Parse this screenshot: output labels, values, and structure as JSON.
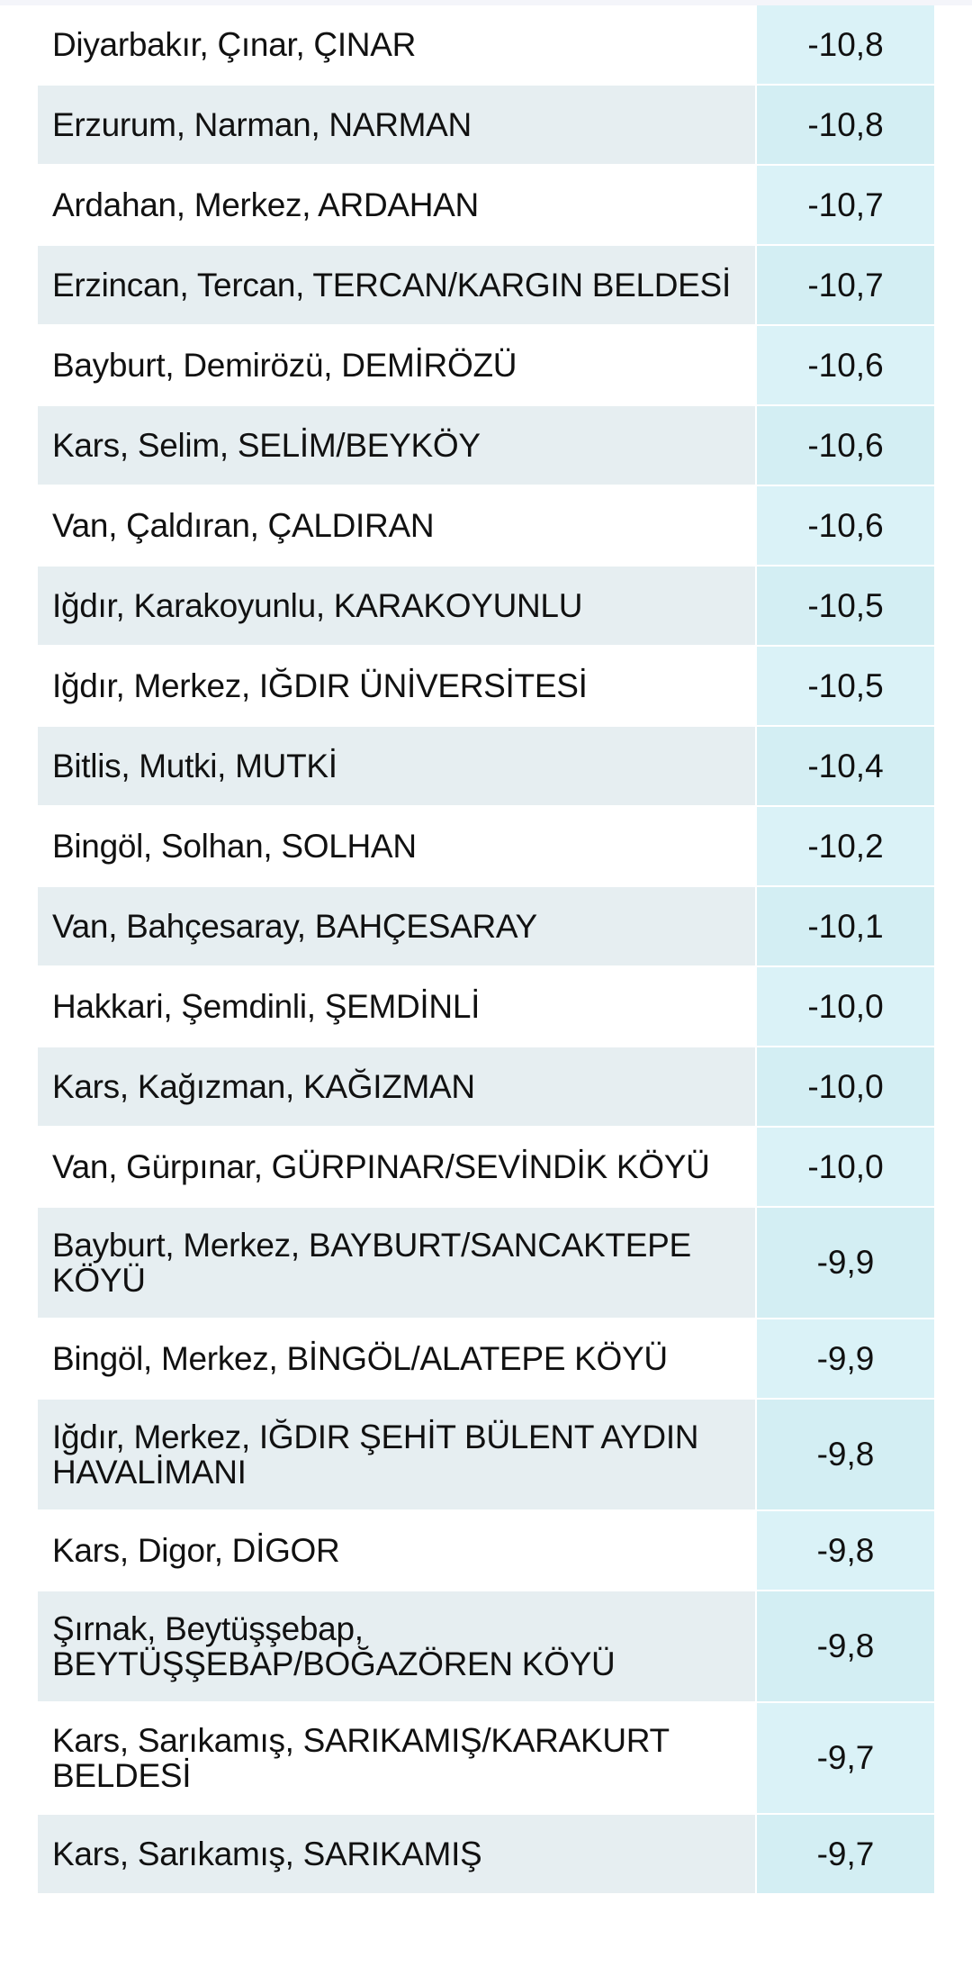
{
  "table": {
    "colors": {
      "row_alt": "#e6eef1",
      "value_cell": "#d5f0f5"
    },
    "rows": [
      {
        "location": "Diyarbakır, Çınar, ÇINAR",
        "value": "-10,8"
      },
      {
        "location": "Erzurum, Narman, NARMAN",
        "value": "-10,8"
      },
      {
        "location": "Ardahan, Merkez, ARDAHAN",
        "value": "-10,7"
      },
      {
        "location": "Erzincan, Tercan, TERCAN/KARGIN BELDESİ",
        "value": "-10,7"
      },
      {
        "location": "Bayburt, Demirözü, DEMİRÖZÜ",
        "value": "-10,6"
      },
      {
        "location": "Kars, Selim, SELİM/BEYKÖY",
        "value": "-10,6"
      },
      {
        "location": "Van, Çaldıran, ÇALDIRAN",
        "value": "-10,6"
      },
      {
        "location": "Iğdır, Karakoyunlu, KARAKOYUNLU",
        "value": "-10,5"
      },
      {
        "location": "Iğdır, Merkez, IĞDIR ÜNİVERSİTESİ",
        "value": "-10,5"
      },
      {
        "location": "Bitlis, Mutki, MUTKİ",
        "value": "-10,4"
      },
      {
        "location": "Bingöl, Solhan, SOLHAN",
        "value": "-10,2"
      },
      {
        "location": "Van, Bahçesaray, BAHÇESARAY",
        "value": "-10,1"
      },
      {
        "location": "Hakkari, Şemdinli, ŞEMDİNLİ",
        "value": "-10,0"
      },
      {
        "location": "Kars, Kağızman, KAĞIZMAN",
        "value": "-10,0"
      },
      {
        "location": "Van, Gürpınar, GÜRPINAR/SEVİNDİK KÖYÜ",
        "value": "-10,0"
      },
      {
        "location": "Bayburt, Merkez, BAYBURT/SANCAKTEPE KÖYÜ",
        "value": "-9,9"
      },
      {
        "location": "Bingöl, Merkez, BİNGÖL/ALATEPE KÖYÜ",
        "value": "-9,9"
      },
      {
        "location": "Iğdır, Merkez, IĞDIR ŞEHİT BÜLENT AYDIN HAVALİMANI",
        "value": "-9,8"
      },
      {
        "location": "Kars, Digor, DİGOR",
        "value": "-9,8"
      },
      {
        "location": "Şırnak, Beytüşşebap, BEYTÜŞŞEBAP/BOĞAZÖREN KÖYÜ",
        "value": "-9,8"
      },
      {
        "location": "Kars, Sarıkamış, SARIKAMIŞ/KARAKURT BELDESİ",
        "value": "-9,7"
      },
      {
        "location": "Kars, Sarıkamış, SARIKAMIŞ",
        "value": "-9,7"
      }
    ]
  }
}
